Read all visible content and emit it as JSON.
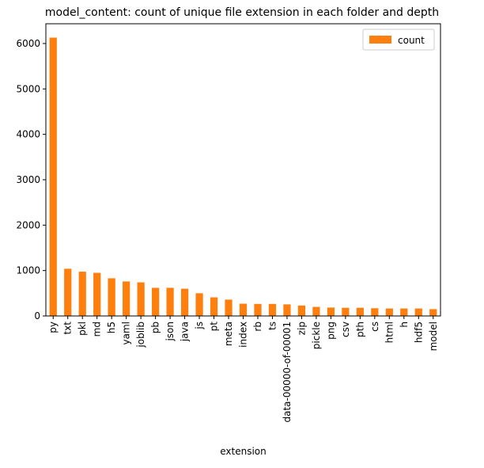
{
  "chart_data": {
    "type": "bar",
    "title": "model_content: count of unique file extension in each folder and depth",
    "xlabel": "extension",
    "ylabel": "",
    "categories": [
      "py",
      "txt",
      "pkl",
      "md",
      "h5",
      "yaml",
      "joblib",
      "pb",
      "json",
      "java",
      "js",
      "pt",
      "meta",
      "index",
      "rb",
      "ts",
      "data-00000-of-00001",
      "zip",
      "pickle",
      "png",
      "csv",
      "pth",
      "cs",
      "html",
      "h",
      "hdf5",
      "model"
    ],
    "series": [
      {
        "name": "count",
        "values": [
          6130,
          1040,
          975,
          950,
          830,
          760,
          740,
          620,
          620,
          600,
          500,
          410,
          360,
          270,
          265,
          265,
          255,
          230,
          200,
          185,
          180,
          180,
          170,
          165,
          165,
          165,
          150
        ]
      }
    ],
    "ylim": [
      0,
      6435
    ],
    "yticks": [
      0,
      1000,
      2000,
      3000,
      4000,
      5000,
      6000
    ],
    "grid": false,
    "legend": "top-right",
    "bar_color": "#ff7f0e"
  }
}
